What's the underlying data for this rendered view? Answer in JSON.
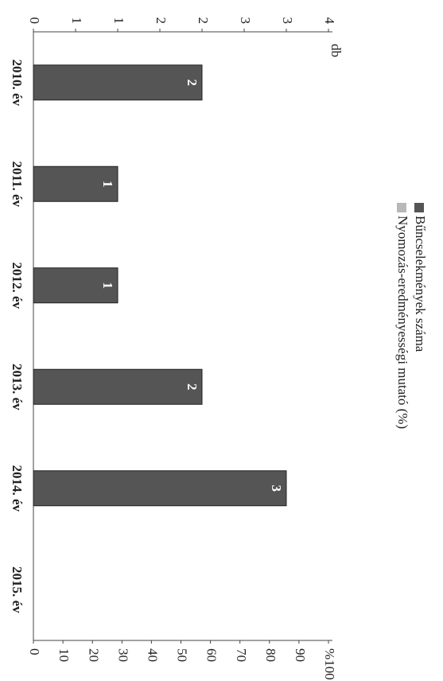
{
  "chart_data": {
    "type": "bar",
    "categories": [
      "2010. év",
      "2011. év",
      "2012. év",
      "2013. év",
      "2014. év",
      "2015. év"
    ],
    "series": [
      {
        "name": "Bűncselekmények száma",
        "color": "#555555",
        "values": [
          2,
          1,
          1,
          2,
          3,
          null
        ]
      },
      {
        "name": "Nyomozás-eredményességi mutató (%)",
        "color": "#b8b8b8",
        "axis": "y2",
        "values": [
          null,
          null,
          null,
          null,
          null,
          null
        ]
      }
    ],
    "y_label": "db",
    "ylim": [
      0,
      3.5
    ],
    "yticks": [
      0,
      {
        "value": 0.5,
        "label": "1"
      },
      1,
      {
        "value": 1.5,
        "label": "2"
      },
      2,
      {
        "value": 2.5,
        "label": "3"
      },
      3,
      {
        "value": 3.5,
        "label": "4"
      }
    ],
    "y2lim": [
      0,
      100
    ],
    "y2ticks": [
      0,
      10,
      20,
      30,
      40,
      50,
      60,
      70,
      80,
      90,
      {
        "value": 100,
        "label": "%100"
      }
    ],
    "legend": "top-right"
  }
}
